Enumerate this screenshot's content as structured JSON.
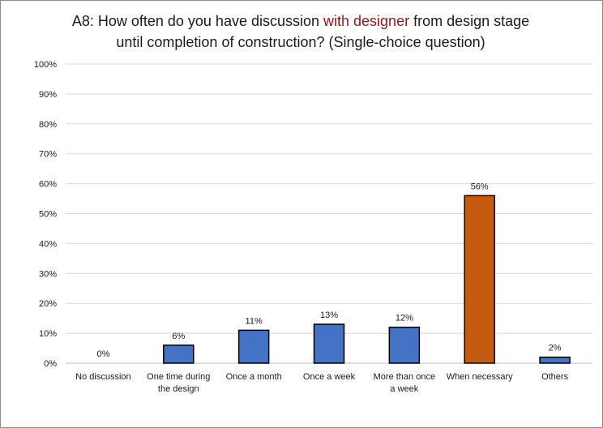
{
  "title": {
    "line1_prefix": "A8: How often do you have discussion ",
    "line1_accent": "with designer",
    "line1_suffix": " from design stage",
    "line2": "until completion of construction?  (Single-choice question)"
  },
  "colors": {
    "bar_default": "#4472c4",
    "bar_highlight": "#c55a11",
    "title_accent": "#8b1a1a",
    "gridline": "#d9d9d9"
  },
  "chart_data": {
    "type": "bar",
    "title": "A8: How often do you have discussion with designer from design stage until completion of construction?  (Single-choice question)",
    "categories": [
      [
        "No discussion"
      ],
      [
        "One time during",
        "the design"
      ],
      [
        "Once a month"
      ],
      [
        "Once a week"
      ],
      [
        "More than once",
        "a week"
      ],
      [
        "When necessary"
      ],
      [
        "Others"
      ]
    ],
    "values": [
      0,
      6,
      11,
      13,
      12,
      56,
      2
    ],
    "value_labels": [
      "0%",
      "6%",
      "11%",
      "13%",
      "12%",
      "56%",
      "2%"
    ],
    "highlight_index": 5,
    "ylim": [
      0,
      100
    ],
    "yticks": [
      0,
      10,
      20,
      30,
      40,
      50,
      60,
      70,
      80,
      90,
      100
    ],
    "ytick_labels": [
      "0%",
      "10%",
      "20%",
      "30%",
      "40%",
      "50%",
      "60%",
      "70%",
      "80%",
      "90%",
      "100%"
    ],
    "xlabel": "",
    "ylabel": "",
    "grid": true,
    "legend": "none"
  }
}
